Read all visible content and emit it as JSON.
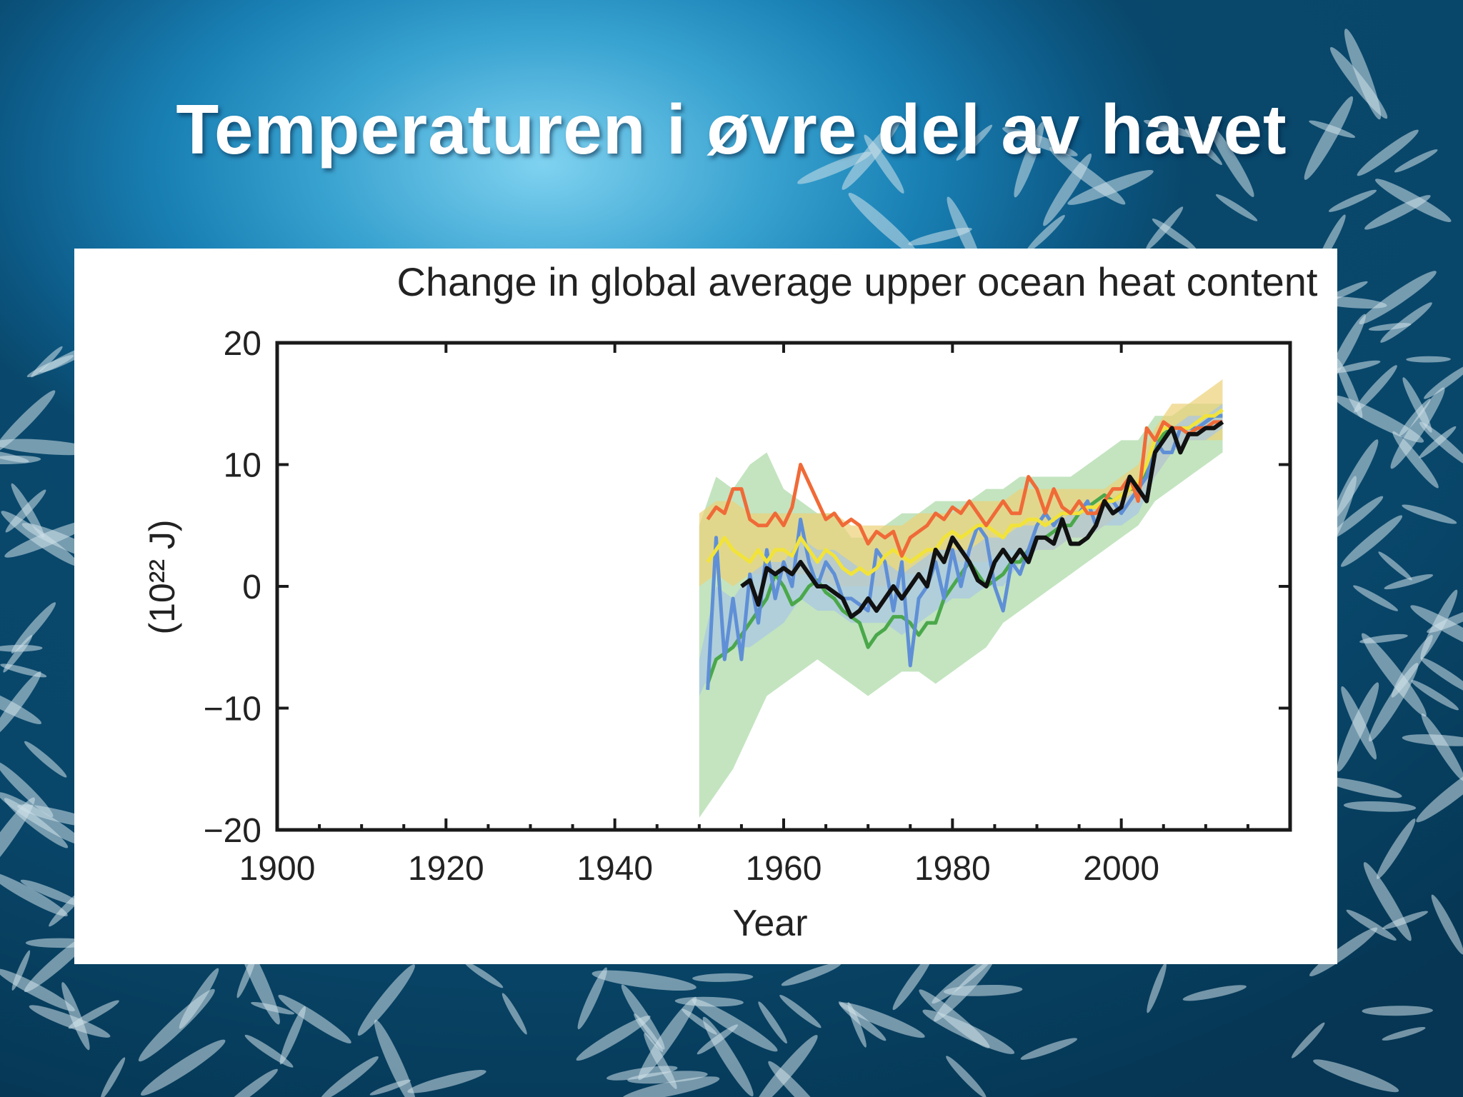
{
  "slide": {
    "title": "Temperaturen i øvre del av havet",
    "background": "underwater-fish-school-photo"
  },
  "chart_data": {
    "type": "line",
    "title": "Change in global average upper ocean heat content",
    "xlabel": "Year",
    "ylabel": "(10²² J)",
    "xlim": [
      1900,
      2020
    ],
    "ylim": [
      -20,
      20
    ],
    "x_ticks": [
      1900,
      1920,
      1940,
      1960,
      1980,
      2000
    ],
    "y_ticks": [
      20,
      10,
      0,
      -10,
      -20
    ],
    "x_tick_labels": [
      "1900",
      "1920",
      "1940",
      "1960",
      "1980",
      "2000"
    ],
    "y_tick_labels": [
      "20",
      "10",
      "0",
      "−10",
      "−20"
    ],
    "grid": false,
    "legend": "none",
    "bands": [
      {
        "color": "#aad9a4",
        "x": [
          1950,
          1952,
          1954,
          1956,
          1958,
          1960,
          1962,
          1964,
          1966,
          1968,
          1970,
          1972,
          1974,
          1976,
          1978,
          1980,
          1982,
          1984,
          1986,
          1988,
          1990,
          1992,
          1994,
          1996,
          1998,
          2000,
          2002,
          2004,
          2006,
          2008,
          2010,
          2012
        ],
        "upper": [
          5,
          9,
          8,
          10,
          11,
          8,
          7,
          6,
          6,
          4,
          4,
          5,
          6,
          6,
          7,
          7,
          7,
          8,
          8,
          9,
          9,
          9,
          9,
          10,
          11,
          12,
          12,
          14,
          14,
          15,
          15,
          15
        ],
        "lower": [
          -19,
          -17,
          -15,
          -12,
          -9,
          -8,
          -7,
          -6,
          -7,
          -8,
          -9,
          -8,
          -7,
          -7,
          -8,
          -7,
          -6,
          -5,
          -3,
          -2,
          -1,
          0,
          1,
          2,
          3,
          4,
          5,
          7,
          8,
          9,
          10,
          11
        ]
      },
      {
        "color": "#ecd178",
        "x": [
          1950,
          1952,
          1954,
          1956,
          1958,
          1960,
          1962,
          1964,
          1966,
          1968,
          1970,
          1972,
          1974,
          1976,
          1978,
          1980,
          1982,
          1984,
          1986,
          1988,
          1990,
          1992,
          1994,
          1996,
          1998,
          2000,
          2002,
          2004,
          2006,
          2008,
          2010,
          2012
        ],
        "upper": [
          6,
          7,
          7,
          6,
          6,
          6,
          6,
          6,
          6,
          5,
          5,
          5,
          5,
          6,
          6,
          6,
          7,
          7,
          7,
          8,
          8,
          8,
          8,
          8,
          8,
          9,
          10,
          13,
          15,
          15,
          16,
          17
        ],
        "lower": [
          0,
          1,
          0,
          1,
          1,
          1,
          1,
          1,
          0,
          0,
          0,
          0,
          1,
          1,
          2,
          2,
          2,
          2,
          3,
          3,
          3,
          3,
          4,
          4,
          5,
          6,
          7,
          9,
          11,
          12,
          12,
          12
        ]
      },
      {
        "color": "#a8c6e6",
        "x": [
          1950,
          1952,
          1954,
          1956,
          1958,
          1960,
          1962,
          1964,
          1966,
          1968,
          1970,
          1972,
          1974,
          1976,
          1978,
          1980,
          1982,
          1984,
          1986,
          1988,
          1990,
          1992,
          1994,
          1996,
          1998,
          2000,
          2002,
          2004,
          2006,
          2008,
          2010,
          2012
        ],
        "upper": [
          -6,
          0,
          -1,
          1,
          2,
          2,
          4,
          3,
          3,
          2,
          1,
          2,
          1,
          2,
          3,
          3,
          3,
          4,
          4,
          5,
          5,
          5,
          6,
          6,
          7,
          7,
          8,
          12,
          13,
          14,
          14,
          15
        ],
        "lower": [
          -9,
          -6,
          -5,
          -5,
          -4,
          -3,
          -1,
          -2,
          -2,
          -3,
          -3,
          -3,
          -4,
          -3,
          -2,
          -1,
          -1,
          0,
          0,
          2,
          3,
          3,
          4,
          4,
          5,
          5,
          6,
          9,
          11,
          12,
          12,
          13
        ]
      }
    ],
    "series": [
      {
        "color": "#4aa84a",
        "x": [
          1951,
          1952,
          1953,
          1954,
          1955,
          1956,
          1957,
          1958,
          1959,
          1960,
          1961,
          1962,
          1963,
          1964,
          1965,
          1966,
          1967,
          1968,
          1969,
          1970,
          1971,
          1972,
          1973,
          1974,
          1975,
          1976,
          1977,
          1978,
          1979,
          1980,
          1981,
          1982,
          1983,
          1984,
          1985,
          1986,
          1987,
          1988,
          1989,
          1990,
          1991,
          1992,
          1993,
          1994,
          1995,
          1996,
          1997,
          1998,
          1999,
          2000,
          2001,
          2002,
          2003,
          2004,
          2005,
          2006,
          2007,
          2008,
          2009,
          2010,
          2011,
          2012
        ],
        "y": [
          -8,
          -6,
          -5.5,
          -5,
          -4,
          -3,
          -2,
          -1,
          1,
          0,
          -1.5,
          -1,
          0,
          0.5,
          -0.5,
          -1,
          -2,
          -2.5,
          -3,
          -5,
          -4,
          -3.5,
          -2.5,
          -2.5,
          -3,
          -4,
          -3,
          -3,
          -1,
          0,
          1,
          2,
          1,
          0,
          0.5,
          1,
          2,
          2,
          3,
          4,
          4,
          4.5,
          5,
          5,
          6,
          6.5,
          7,
          7.5,
          7,
          7.5,
          8,
          8,
          9.5,
          11.5,
          12.5,
          13,
          13,
          12.5,
          13,
          13.5,
          14,
          14
        ]
      },
      {
        "color": "#5f8fd6",
        "x": [
          1951,
          1952,
          1953,
          1954,
          1955,
          1956,
          1957,
          1958,
          1959,
          1960,
          1961,
          1962,
          1963,
          1964,
          1965,
          1966,
          1967,
          1968,
          1969,
          1970,
          1971,
          1972,
          1973,
          1974,
          1975,
          1976,
          1977,
          1978,
          1979,
          1980,
          1981,
          1982,
          1983,
          1984,
          1985,
          1986,
          1987,
          1988,
          1989,
          1990,
          1991,
          1992,
          1993,
          1994,
          1995,
          1996,
          1997,
          1998,
          1999,
          2000,
          2001,
          2002,
          2003,
          2004,
          2005,
          2006,
          2007,
          2008,
          2009,
          2010,
          2011,
          2012
        ],
        "y": [
          -8.5,
          4,
          -6,
          -1,
          -6,
          1,
          -3,
          3,
          -1,
          2,
          0,
          5.5,
          2,
          0,
          2,
          1,
          -1,
          -1,
          -1.5,
          -2,
          3,
          2,
          -2,
          2,
          -6.5,
          -1,
          0,
          2,
          -1,
          3,
          0,
          3,
          5,
          4,
          0,
          -2,
          2,
          1,
          3,
          5,
          6,
          5,
          6,
          6,
          6,
          7,
          5,
          7,
          7,
          6,
          7,
          8,
          9,
          12,
          11,
          11,
          13,
          13,
          13,
          13.5,
          14,
          14
        ]
      },
      {
        "color": "#f2e33a",
        "x": [
          1951,
          1952,
          1953,
          1954,
          1955,
          1956,
          1957,
          1958,
          1959,
          1960,
          1961,
          1962,
          1963,
          1964,
          1965,
          1966,
          1967,
          1968,
          1969,
          1970,
          1971,
          1972,
          1973,
          1974,
          1975,
          1976,
          1977,
          1978,
          1979,
          1980,
          1981,
          1982,
          1983,
          1984,
          1985,
          1986,
          1987,
          1988,
          1989,
          1990,
          1991,
          1992,
          1993,
          1994,
          1995,
          1996,
          1997,
          1998,
          1999,
          2000,
          2001,
          2002,
          2003,
          2004,
          2005,
          2006,
          2007,
          2008,
          2009,
          2010,
          2011,
          2012
        ],
        "y": [
          2,
          3,
          4,
          3,
          2.5,
          2,
          3,
          2,
          3,
          3,
          2.5,
          4,
          3,
          2,
          3,
          2.5,
          1.5,
          1,
          1.5,
          1,
          1.5,
          2.5,
          3,
          2.5,
          2,
          2.5,
          3,
          3,
          4,
          4.5,
          4,
          4.5,
          5,
          5,
          4.5,
          4,
          5,
          5,
          5.5,
          5.5,
          5,
          5.5,
          6,
          6,
          6,
          6.5,
          6.5,
          7,
          7,
          7.5,
          8,
          8.5,
          10,
          12,
          13,
          13,
          13,
          13,
          13.5,
          14,
          14,
          14.5
        ]
      },
      {
        "color": "#f06a38",
        "x": [
          1951,
          1952,
          1953,
          1954,
          1955,
          1956,
          1957,
          1958,
          1959,
          1960,
          1961,
          1962,
          1963,
          1964,
          1965,
          1966,
          1967,
          1968,
          1969,
          1970,
          1971,
          1972,
          1973,
          1974,
          1975,
          1976,
          1977,
          1978,
          1979,
          1980,
          1981,
          1982,
          1983,
          1984,
          1985,
          1986,
          1987,
          1988,
          1989,
          1990,
          1991,
          1992,
          1993,
          1994,
          1995,
          1996,
          1997,
          1998,
          1999,
          2000,
          2001,
          2002,
          2003,
          2004,
          2005,
          2006,
          2007,
          2008,
          2009,
          2010,
          2011,
          2012
        ],
        "y": [
          5.5,
          6.5,
          6,
          8,
          8,
          5.5,
          5,
          5,
          6,
          5,
          6.5,
          10,
          8.5,
          7,
          5.5,
          6,
          5,
          5.5,
          5,
          3.5,
          4.5,
          4,
          4.5,
          2.5,
          4,
          4.5,
          5,
          6,
          5.5,
          6.5,
          6,
          7,
          6,
          5,
          6,
          7,
          6,
          6,
          9,
          8,
          6,
          8,
          6.5,
          6,
          7,
          6,
          6,
          7,
          8,
          8,
          9,
          7,
          13,
          12,
          13.5,
          13,
          13,
          12.5,
          13,
          13,
          13.5,
          13.5
        ]
      },
      {
        "color": "#111111",
        "x": [
          1955,
          1956,
          1957,
          1958,
          1959,
          1960,
          1961,
          1962,
          1963,
          1964,
          1965,
          1966,
          1967,
          1968,
          1969,
          1970,
          1971,
          1972,
          1973,
          1974,
          1975,
          1976,
          1977,
          1978,
          1979,
          1980,
          1981,
          1982,
          1983,
          1984,
          1985,
          1986,
          1987,
          1988,
          1989,
          1990,
          1991,
          1992,
          1993,
          1994,
          1995,
          1996,
          1997,
          1998,
          1999,
          2000,
          2001,
          2002,
          2003,
          2004,
          2005,
          2006,
          2007,
          2008,
          2009,
          2010,
          2011,
          2012
        ],
        "y": [
          0,
          0.5,
          -1.5,
          1.5,
          1,
          1.5,
          1,
          2,
          1,
          0,
          0,
          -0.5,
          -1,
          -2.5,
          -2,
          -1,
          -2,
          -1,
          0,
          -1,
          0,
          1,
          0,
          3,
          2,
          4,
          3,
          2,
          0.5,
          0,
          2,
          3,
          2,
          3,
          2,
          4,
          4,
          3.5,
          5.5,
          3.5,
          3.5,
          4,
          5,
          7,
          6,
          6.5,
          9,
          8,
          7,
          11,
          12,
          13,
          11,
          12.5,
          12.5,
          13,
          13,
          13.5
        ]
      }
    ]
  }
}
